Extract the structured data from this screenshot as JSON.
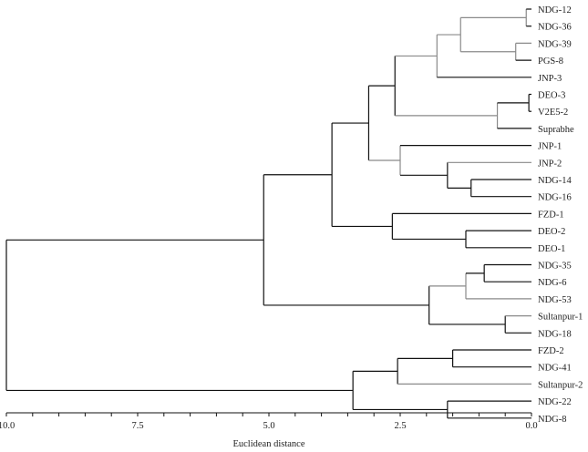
{
  "chart_data": {
    "type": "dendrogram",
    "xlabel": "Euclidean distance",
    "xlim": [
      10.0,
      0.0
    ],
    "major_ticks": [
      10.0,
      7.5,
      5.0,
      2.5,
      0.0
    ],
    "tick_labels": [
      "10.0",
      "7.5",
      "5.0",
      "2.5",
      "0.0"
    ],
    "minor_tick_step": 0.5,
    "colors": {
      "dark": "#111111",
      "gray": "#8a8a8a"
    },
    "tree": {
      "h": 10.0,
      "children": [
        {
          "h": 5.1,
          "children": [
            {
              "h": 3.8,
              "children": [
                {
                  "h": 3.1,
                  "children": [
                    {
                      "h": 2.6,
                      "color": "dark",
                      "children": [
                        {
                          "h": 1.8,
                          "color": "gray",
                          "children": [
                            {
                              "h": 1.35,
                              "color": "gray",
                              "children": [
                                {
                                  "h": 0.1,
                                  "color": "gray",
                                  "children": [
                                    {
                                      "leaf": "NDG-12"
                                    },
                                    {
                                      "leaf": "NDG-36"
                                    }
                                  ]
                                },
                                {
                                  "h": 0.3,
                                  "color": "gray",
                                  "children": [
                                    {
                                      "leaf": "NDG-39",
                                      "color": "gray"
                                    },
                                    {
                                      "leaf": "PGS-8"
                                    }
                                  ]
                                }
                              ]
                            },
                            {
                              "leaf": "JNP-3"
                            }
                          ]
                        },
                        {
                          "h": 0.65,
                          "color": "gray",
                          "children": [
                            {
                              "h": 0.05,
                              "children": [
                                {
                                  "leaf": "DEO-3"
                                },
                                {
                                  "leaf": "V2E5-2"
                                }
                              ]
                            },
                            {
                              "leaf": "Suprabhe"
                            }
                          ]
                        }
                      ]
                    },
                    {
                      "h": 2.5,
                      "color": "gray",
                      "children": [
                        {
                          "leaf": "JNP-1"
                        },
                        {
                          "h": 1.6,
                          "children": [
                            {
                              "leaf": "JNP-2",
                              "color": "gray"
                            },
                            {
                              "h": 1.15,
                              "children": [
                                {
                                  "leaf": "NDG-14"
                                },
                                {
                                  "leaf": "NDG-16"
                                }
                              ]
                            }
                          ]
                        }
                      ]
                    }
                  ]
                },
                {
                  "h": 2.65,
                  "children": [
                    {
                      "leaf": "FZD-1"
                    },
                    {
                      "h": 1.25,
                      "children": [
                        {
                          "leaf": "DEO-2"
                        },
                        {
                          "leaf": "DEO-1"
                        }
                      ]
                    }
                  ]
                }
              ]
            },
            {
              "h": 1.95,
              "children": [
                {
                  "h": 1.25,
                  "color": "gray",
                  "children": [
                    {
                      "h": 0.9,
                      "children": [
                        {
                          "leaf": "NDG-35"
                        },
                        {
                          "leaf": "NDG-6"
                        }
                      ]
                    },
                    {
                      "leaf": "NDG-53",
                      "color": "gray"
                    }
                  ]
                },
                {
                  "h": 0.5,
                  "children": [
                    {
                      "leaf": "Sultanpur-1",
                      "color": "gray"
                    },
                    {
                      "leaf": "NDG-18"
                    }
                  ]
                }
              ]
            }
          ]
        },
        {
          "h": 3.4,
          "children": [
            {
              "h": 2.55,
              "children": [
                {
                  "h": 1.5,
                  "children": [
                    {
                      "leaf": "FZD-2"
                    },
                    {
                      "leaf": "NDG-41"
                    }
                  ]
                },
                {
                  "leaf": "Sultanpur-2",
                  "color": "gray"
                }
              ]
            },
            {
              "h": 1.6,
              "children": [
                {
                  "leaf": "NDG-22"
                },
                {
                  "leaf": "NDG-8"
                }
              ]
            }
          ]
        }
      ]
    }
  }
}
